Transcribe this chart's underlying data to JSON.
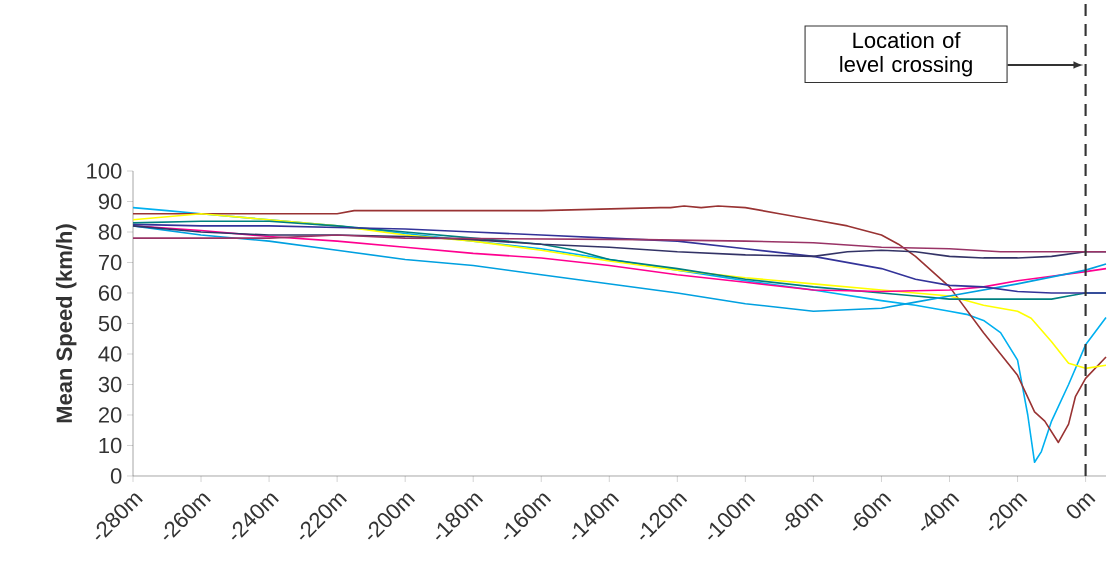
{
  "chart_data": {
    "type": "line",
    "ylabel": "Mean Speed (km/h)",
    "xlim": [
      -280,
      6
    ],
    "ylim": [
      0,
      100
    ],
    "xticks": [
      {
        "value": -280,
        "label": "-280m"
      },
      {
        "value": -260,
        "label": "-260m"
      },
      {
        "value": -240,
        "label": "-240m"
      },
      {
        "value": -220,
        "label": "-220m"
      },
      {
        "value": -200,
        "label": "-200m"
      },
      {
        "value": -180,
        "label": "-180m"
      },
      {
        "value": -160,
        "label": "-160m"
      },
      {
        "value": -140,
        "label": "-140m"
      },
      {
        "value": -120,
        "label": "-120m"
      },
      {
        "value": -100,
        "label": "-100m"
      },
      {
        "value": -80,
        "label": "-80m"
      },
      {
        "value": -60,
        "label": "-60m"
      },
      {
        "value": -40,
        "label": "-40m"
      },
      {
        "value": -20,
        "label": "-20m"
      },
      {
        "value": 0,
        "label": "0m"
      }
    ],
    "yticks": [
      0,
      10,
      20,
      30,
      40,
      50,
      60,
      70,
      80,
      90,
      100
    ],
    "ref_lines": [
      {
        "axis": "x",
        "value": 0,
        "line_style": "dashed",
        "color": "#333333"
      }
    ],
    "annotations": [
      "Location of level crossing"
    ],
    "series": [
      {
        "color": "#00b0f0",
        "x": [
          -280,
          -270,
          -260,
          -240,
          -220,
          -200,
          -180,
          -160,
          -140,
          -120,
          -100,
          -80,
          -60,
          -50,
          -40,
          -35,
          -30,
          -25,
          -20,
          -17,
          -15,
          -13,
          -10,
          -5,
          0,
          6
        ],
        "values": [
          88,
          87,
          86,
          84,
          82,
          79.5,
          77,
          74.5,
          71,
          67.5,
          64,
          61,
          57.5,
          56,
          54,
          53,
          51,
          47,
          38,
          20,
          4.5,
          8,
          18,
          30,
          43,
          52
        ]
      },
      {
        "color": "#993333",
        "x": [
          -280,
          -220,
          -215,
          -160,
          -125,
          -122,
          -118,
          -113,
          -108,
          -100,
          -90,
          -80,
          -70,
          -60,
          -55,
          -50,
          -45,
          -40,
          -30,
          -20,
          -15,
          -12,
          -8,
          -5,
          -3,
          0,
          6
        ],
        "values": [
          86,
          86,
          87,
          87,
          88,
          88,
          88.5,
          88,
          88.5,
          88,
          86,
          84,
          82,
          79,
          76,
          72,
          67,
          62,
          47,
          33,
          21,
          18,
          11,
          17,
          26,
          32,
          39
        ]
      },
      {
        "color": "#ffff00",
        "x": [
          -280,
          -260,
          -240,
          -220,
          -200,
          -180,
          -160,
          -140,
          -120,
          -100,
          -80,
          -60,
          -40,
          -30,
          -20,
          -16,
          -10,
          -5,
          0,
          6
        ],
        "values": [
          84,
          86,
          84,
          82,
          79,
          77,
          74,
          70.5,
          67.5,
          65,
          63,
          61,
          59,
          56,
          54,
          51.7,
          44,
          37,
          35.3,
          36.3
        ]
      },
      {
        "color": "#008080",
        "x": [
          -280,
          -260,
          -240,
          -220,
          -200,
          -180,
          -160,
          -150,
          -140,
          -120,
          -100,
          -80,
          -60,
          -50,
          -40,
          -10,
          -5,
          0,
          6
        ],
        "values": [
          83,
          83.5,
          83.5,
          82,
          80,
          78,
          76,
          74,
          71,
          68,
          64.5,
          62,
          60,
          59,
          58,
          58,
          59,
          60,
          60
        ]
      },
      {
        "color": "#ff0090",
        "x": [
          -280,
          -260,
          -240,
          -220,
          -200,
          -180,
          -160,
          -140,
          -120,
          -100,
          -80,
          -60,
          -40,
          -30,
          -20,
          -10,
          0,
          6
        ],
        "values": [
          82,
          80.5,
          78.5,
          77,
          75,
          73,
          71.5,
          69,
          66,
          63.5,
          61,
          60.5,
          61,
          62,
          64,
          65.5,
          67,
          68
        ]
      },
      {
        "color": "#00a0e0",
        "x": [
          -280,
          -260,
          -240,
          -220,
          -200,
          -180,
          -160,
          -140,
          -120,
          -100,
          -80,
          -60,
          -50,
          -40,
          -20,
          0,
          6
        ],
        "values": [
          82,
          79,
          77,
          74,
          71,
          69,
          66,
          63,
          60,
          56.5,
          54,
          55,
          57,
          59,
          63,
          67.5,
          69.5
        ]
      },
      {
        "color": "#333399",
        "x": [
          -280,
          -260,
          -240,
          -220,
          -200,
          -180,
          -160,
          -140,
          -120,
          -100,
          -80,
          -60,
          -50,
          -40,
          -30,
          -20,
          -10,
          0,
          6
        ],
        "values": [
          82.5,
          82,
          82,
          81.5,
          81,
          80,
          79,
          78,
          77,
          74.5,
          72,
          68,
          64.5,
          62.5,
          62,
          60.5,
          60,
          60,
          60
        ]
      },
      {
        "color": "#333366",
        "x": [
          -280,
          -260,
          -240,
          -220,
          -200,
          -180,
          -160,
          -140,
          -120,
          -100,
          -80,
          -70,
          -60,
          -50,
          -40,
          -30,
          -20,
          -10,
          0,
          6
        ],
        "values": [
          82,
          80,
          79,
          79,
          78.5,
          77.5,
          76,
          75,
          73.5,
          72.5,
          72,
          73.5,
          74,
          73.5,
          72,
          71.5,
          71.5,
          72,
          73.5,
          73.5
        ]
      },
      {
        "color": "#993366",
        "x": [
          -280,
          -240,
          -220,
          -200,
          -130,
          -100,
          -80,
          -60,
          -40,
          -25,
          0,
          6
        ],
        "values": [
          78,
          78,
          79,
          78,
          77.5,
          77,
          76.5,
          75,
          74.5,
          73.5,
          73.5,
          73.5
        ]
      }
    ]
  }
}
